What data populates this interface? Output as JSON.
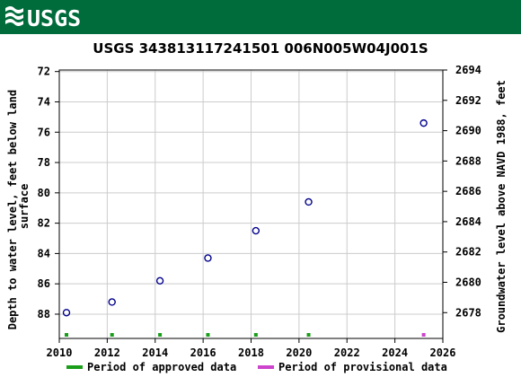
{
  "header": {
    "logo_text": "USGS",
    "brand_color": "#006b3b"
  },
  "chart_data": {
    "type": "scatter",
    "title": "USGS 343813117241501 006N005W04J001S",
    "ylabel_left": "Depth to water level, feet below land surface",
    "ylabel_right": "Groundwater level above NAVD 1988, feet",
    "x_ticks": [
      "2010",
      "2012",
      "2014",
      "2016",
      "2018",
      "2020",
      "2022",
      "2024",
      "2026"
    ],
    "y_ticks_left": [
      "72",
      "74",
      "76",
      "78",
      "80",
      "82",
      "84",
      "86",
      "88"
    ],
    "y_ticks_right": [
      "2694",
      "2692",
      "2690",
      "2688",
      "2686",
      "2684",
      "2682",
      "2680",
      "2678"
    ],
    "xlim": [
      2010,
      2026
    ],
    "ylim_left": [
      89.6,
      71.9
    ],
    "ylim_right": [
      2676.3,
      2694
    ],
    "grid": true,
    "series": [
      {
        "name": "measurements",
        "color": "#00008b",
        "marker": "open-circle",
        "x": [
          2010.3,
          2012.2,
          2014.2,
          2016.2,
          2018.2,
          2020.4,
          2025.2
        ],
        "y": [
          87.9,
          87.2,
          85.8,
          84.3,
          82.5,
          80.6,
          75.4
        ]
      }
    ],
    "approved_periods": [
      2010.3,
      2012.2,
      2014.2,
      2016.2,
      2018.2,
      2020.4
    ],
    "provisional_periods": [
      2025.2
    ],
    "approved_color": "#1a9e1a",
    "provisional_color": "#cc44cc",
    "legend": [
      {
        "label": "Period of approved data",
        "color": "#1a9e1a"
      },
      {
        "label": "Period of provisional data",
        "color": "#cc44cc"
      }
    ],
    "legend_position": "bottom"
  }
}
